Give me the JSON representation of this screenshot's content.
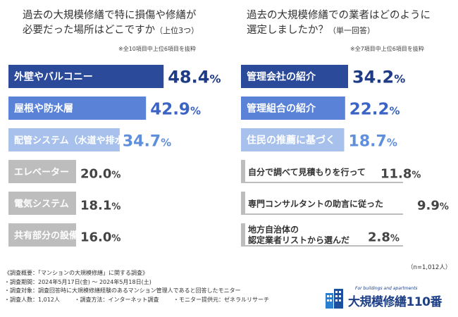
{
  "chart_data": [
    {
      "type": "bar",
      "title_line1": "過去の大規模修繕で特に損傷や修繕が",
      "title_line2": "必要だった場所はどこですか",
      "title_suffix": "（上位3つ）",
      "note": "※全10項目中上位6項目を抜粋",
      "categories": [
        "外壁やバルコニー",
        "屋根や防水層",
        "配管システム（水道や排水）",
        "エレベーター",
        "電気システム",
        "共有部分の設備（ロビーや廊下）"
      ],
      "values": [
        48.4,
        42.9,
        34.7,
        20.0,
        18.1,
        16.0
      ],
      "value_labels": [
        "48.4%",
        "42.9%",
        "34.7%",
        "20.0%",
        "18.1%",
        "16.0%"
      ],
      "xlim": [
        0,
        100
      ]
    },
    {
      "type": "bar",
      "title_line1": "過去の大規模修繕での業者はどのように",
      "title_line2": "選定しましたか？",
      "title_suffix": "（単一回答）",
      "note": "※全7項目中上位6項目を抜粋",
      "categories": [
        "管理会社の紹介",
        "管理組合の紹介",
        "住民の推薦に基づく",
        "自分で調べて見積もりを行って",
        "専門コンサルタントの助言に従った",
        "地方自治体の認定業者リストから選んだ"
      ],
      "category_lines": [
        [
          "管理会社の紹介"
        ],
        [
          "管理組合の紹介"
        ],
        [
          "住民の推薦に基づく"
        ],
        [
          "自分で調べて見積もりを行って"
        ],
        [
          "専門コンサルタントの助言に従った"
        ],
        [
          "地方自治体の",
          "認定業者リストから選んだ"
        ]
      ],
      "values": [
        34.2,
        22.2,
        18.7,
        11.8,
        9.9,
        2.8
      ],
      "value_labels": [
        "34.2%",
        "22.2%",
        "18.7%",
        "11.8%",
        "9.9%",
        "2.8%"
      ],
      "n_label": "（n=1,012人）",
      "xlim": [
        0,
        100
      ]
    }
  ],
  "colors": {
    "rank1": "#2b4a9a",
    "rank2": "#5a82d6",
    "rank3": "#a7c1ec",
    "other": "#bdbdbd",
    "value_dark": "#1e3b86",
    "value_mid": "#3b64c5",
    "value_light": "#5f8fdc",
    "value_gray": "#444444"
  },
  "footer": {
    "heading": "《調査概要：「マンションの大規模修繕」に関する調査》",
    "period": "・調査期間：2024年5月17日(金) 〜 2024年5月18日(土)",
    "target": "・調査対象：調査回答時に大規模修繕経験のあるマンション管理人であると回答したモニター",
    "count": "・調査人数：1,012人",
    "method": "・調査方法：インターネット調査",
    "provider": "・モニター提供元：ゼネラルリサーチ"
  },
  "logo": {
    "tagline": "For buildings and apartments",
    "name": "大規模修繕110番",
    "icon": "building-icon"
  }
}
